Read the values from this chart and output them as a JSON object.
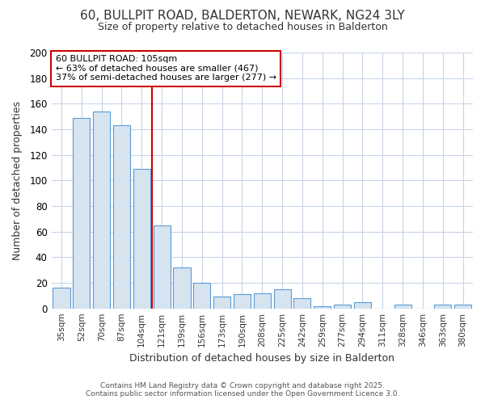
{
  "title_line1": "60, BULLPIT ROAD, BALDERTON, NEWARK, NG24 3LY",
  "title_line2": "Size of property relative to detached houses in Balderton",
  "xlabel": "Distribution of detached houses by size in Balderton",
  "ylabel": "Number of detached properties",
  "categories": [
    "35sqm",
    "52sqm",
    "70sqm",
    "87sqm",
    "104sqm",
    "121sqm",
    "139sqm",
    "156sqm",
    "173sqm",
    "190sqm",
    "208sqm",
    "225sqm",
    "242sqm",
    "259sqm",
    "277sqm",
    "294sqm",
    "311sqm",
    "328sqm",
    "346sqm",
    "363sqm",
    "380sqm"
  ],
  "values": [
    16,
    149,
    154,
    143,
    109,
    65,
    32,
    20,
    9,
    11,
    12,
    15,
    8,
    2,
    3,
    5,
    0,
    3,
    0,
    3,
    3
  ],
  "bar_color": "#d6e4f0",
  "bar_edge_color": "#5b9bd5",
  "vline_color": "#cc0000",
  "annotation_text": "60 BULLPIT ROAD: 105sqm\n← 63% of detached houses are smaller (467)\n37% of semi-detached houses are larger (277) →",
  "annotation_box_color": "#ffffff",
  "annotation_box_edge": "#cc0000",
  "annotation_fontsize": 8,
  "ylim": [
    0,
    200
  ],
  "yticks": [
    0,
    20,
    40,
    60,
    80,
    100,
    120,
    140,
    160,
    180,
    200
  ],
  "background_color": "#ffffff",
  "grid_color": "#c8d4e8",
  "footer_line1": "Contains HM Land Registry data © Crown copyright and database right 2025.",
  "footer_line2": "Contains public sector information licensed under the Open Government Licence 3.0."
}
